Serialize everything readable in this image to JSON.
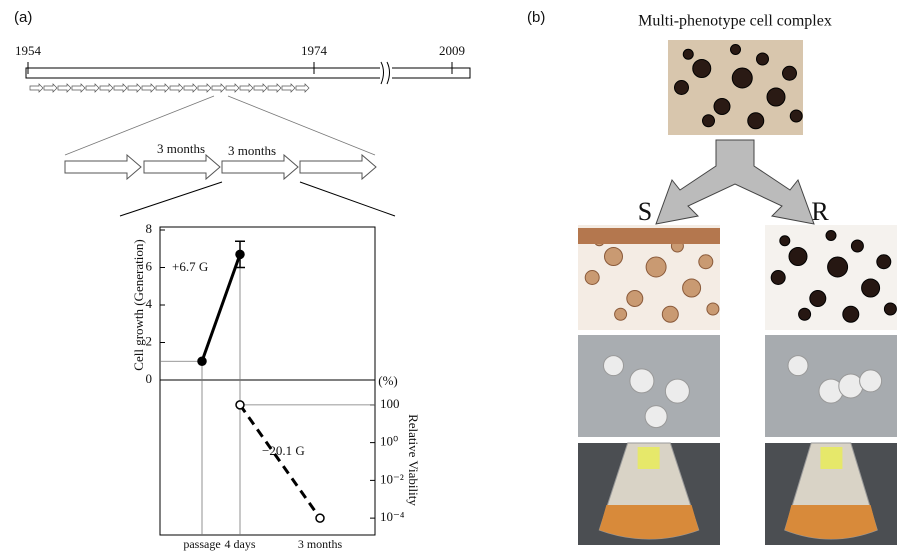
{
  "panel_a": {
    "label": "(a)",
    "timeline_years": [
      "1954",
      "1974",
      "2009"
    ],
    "durations": [
      "3 months",
      "3 months"
    ]
  },
  "panel_b": {
    "label": "(b)",
    "title": "Multi-phenotype cell complex",
    "groups": [
      "S",
      "R"
    ]
  },
  "chart_data": {
    "type": "line",
    "ylabel": "Cell growth (Generation)",
    "y2label": "Relative Viability",
    "y2unit": "(%)",
    "categories": [
      "passage",
      "4 days",
      "3 months"
    ],
    "ylim": [
      0,
      8
    ],
    "yticks": [
      0,
      2,
      4,
      6,
      8
    ],
    "y2lim": [
      1e-05,
      1000
    ],
    "y2log": true,
    "y2ticks": [
      {
        "value": 100,
        "label": "100"
      },
      {
        "value": 1,
        "label": "10⁰"
      },
      {
        "value": 0.01,
        "label": "10⁻²"
      },
      {
        "value": 0.0001,
        "label": "10⁻⁴"
      }
    ],
    "series": [
      {
        "name": "Cell growth",
        "color": "#000000",
        "values": [
          1,
          6.7,
          null
        ],
        "errors": [
          null,
          0.7,
          null
        ]
      },
      {
        "name": "Relative viability",
        "color": "#000000",
        "axis": "y2",
        "values": [
          null,
          100,
          0.0001
        ]
      }
    ],
    "annotations": [
      "+6.7 G",
      "−20.1 G"
    ]
  }
}
